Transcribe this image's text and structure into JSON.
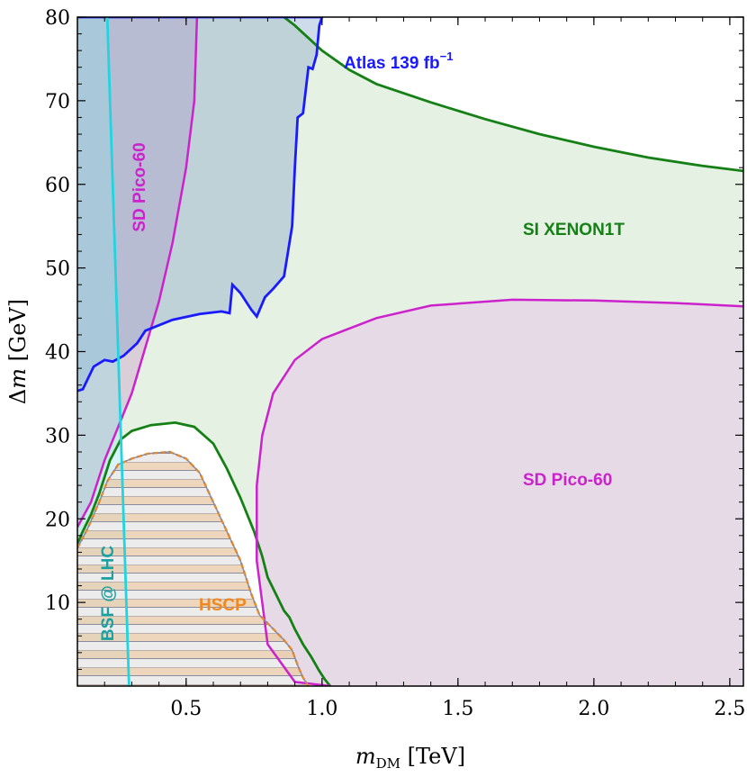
{
  "chart_data": {
    "type": "area",
    "xlabel": "m_DM [TeV]",
    "ylabel": "Δm [GeV]",
    "xlim": [
      0.1,
      2.55
    ],
    "ylim": [
      0,
      80
    ],
    "x_ticks": [
      "0.5",
      "1.0",
      "1.5",
      "2.0",
      "2.5"
    ],
    "y_ticks": [
      "10",
      "20",
      "30",
      "40",
      "50",
      "60",
      "70",
      "80"
    ],
    "grid": false,
    "legend": "none",
    "labels": {
      "atlas": "Atlas 139 fb",
      "atlas_exp": "−1",
      "xenon": "SI XENON1T",
      "pico_upper": "SD Pico-60",
      "pico_lower": "SD Pico-60",
      "bsf": "BSF @ LHC",
      "hscp": "HSCP"
    },
    "colors": {
      "atlas": "#1a1aff",
      "xenon": "#158015",
      "pico": "#cc22cc",
      "bsf": "#22d4e0",
      "bsf_text": "#1aa0a0",
      "hscp": "#ee8822",
      "hscp_hatch": "#8a8aa0"
    },
    "series": [
      {
        "name": "Atlas 139 fb−1",
        "boundary": [
          [
            0.1,
            35.3
          ],
          [
            0.12,
            35.5
          ],
          [
            0.16,
            38.2
          ],
          [
            0.2,
            39
          ],
          [
            0.23,
            38.8
          ],
          [
            0.27,
            39.5
          ],
          [
            0.32,
            41
          ],
          [
            0.35,
            42.5
          ],
          [
            0.45,
            43.8
          ],
          [
            0.55,
            44.5
          ],
          [
            0.63,
            44.8
          ],
          [
            0.66,
            44.6
          ],
          [
            0.67,
            48
          ],
          [
            0.7,
            47
          ],
          [
            0.74,
            45
          ],
          [
            0.76,
            44.2
          ],
          [
            0.79,
            46.5
          ],
          [
            0.82,
            47.5
          ],
          [
            0.86,
            49
          ],
          [
            0.89,
            55
          ],
          [
            0.9,
            62
          ],
          [
            0.91,
            68
          ],
          [
            0.93,
            68.5
          ],
          [
            0.95,
            74
          ],
          [
            0.965,
            73.8
          ],
          [
            0.98,
            75.5
          ],
          [
            0.99,
            79
          ],
          [
            1.0,
            80
          ]
        ]
      },
      {
        "name": "SI XENON1T",
        "boundary": [
          [
            0.1,
            17
          ],
          [
            0.12,
            18.5
          ],
          [
            0.15,
            20.5
          ],
          [
            0.18,
            23
          ],
          [
            0.2,
            25
          ],
          [
            0.22,
            27
          ],
          [
            0.26,
            29.5
          ],
          [
            0.3,
            30.5
          ],
          [
            0.37,
            31.2
          ],
          [
            0.46,
            31.5
          ],
          [
            0.53,
            31
          ],
          [
            0.6,
            29
          ],
          [
            0.65,
            26
          ],
          [
            0.7,
            22.5
          ],
          [
            0.75,
            18.5
          ],
          [
            0.78,
            15.5
          ],
          [
            0.8,
            13
          ],
          [
            0.83,
            11
          ],
          [
            0.86,
            9
          ],
          [
            0.88,
            8.2
          ],
          [
            0.9,
            6.8
          ],
          [
            0.93,
            5
          ],
          [
            0.96,
            3.5
          ],
          [
            0.99,
            1.8
          ],
          [
            1.01,
            0.8
          ],
          [
            1.03,
            0
          ]
        ],
        "upper": [
          [
            0.86,
            80
          ],
          [
            0.9,
            79
          ],
          [
            0.95,
            77.5
          ],
          [
            1.0,
            76
          ],
          [
            1.1,
            73.7
          ],
          [
            1.2,
            72
          ],
          [
            1.4,
            69.8
          ],
          [
            1.6,
            67.8
          ],
          [
            1.8,
            66
          ],
          [
            2.0,
            64.5
          ],
          [
            2.2,
            63.2
          ],
          [
            2.4,
            62.2
          ],
          [
            2.55,
            61.6
          ]
        ]
      },
      {
        "name": "SD Pico-60",
        "upper_boundary": [
          [
            0.1,
            19
          ],
          [
            0.15,
            22
          ],
          [
            0.2,
            27
          ],
          [
            0.25,
            31
          ],
          [
            0.3,
            35
          ],
          [
            0.35,
            40.5
          ],
          [
            0.4,
            46
          ],
          [
            0.45,
            53
          ],
          [
            0.5,
            62
          ],
          [
            0.53,
            70
          ],
          [
            0.54,
            80
          ]
        ],
        "lower_boundary": [
          [
            1.03,
            0
          ],
          [
            0.9,
            0.5
          ],
          [
            0.8,
            5
          ],
          [
            0.76,
            15
          ],
          [
            0.76,
            24
          ],
          [
            0.78,
            30
          ],
          [
            0.82,
            35
          ],
          [
            0.9,
            39
          ],
          [
            1.0,
            41.5
          ],
          [
            1.2,
            44
          ],
          [
            1.4,
            45.5
          ],
          [
            1.7,
            46.2
          ],
          [
            2.0,
            46.1
          ],
          [
            2.3,
            45.8
          ],
          [
            2.55,
            45.4
          ]
        ]
      },
      {
        "name": "BSF @ LHC",
        "boundary": [
          [
            0.21,
            80
          ],
          [
            0.29,
            0
          ]
        ]
      },
      {
        "name": "HSCP",
        "boundary": [
          [
            0.1,
            16.5
          ],
          [
            0.14,
            19
          ],
          [
            0.18,
            22
          ],
          [
            0.21,
            24.5
          ],
          [
            0.25,
            26.5
          ],
          [
            0.3,
            27.2
          ],
          [
            0.36,
            27.8
          ],
          [
            0.44,
            28
          ],
          [
            0.5,
            27.2
          ],
          [
            0.55,
            25.5
          ],
          [
            0.6,
            22
          ],
          [
            0.65,
            18.5
          ],
          [
            0.7,
            15
          ],
          [
            0.74,
            11
          ],
          [
            0.77,
            8.5
          ],
          [
            0.8,
            7.5
          ],
          [
            0.83,
            6.5
          ],
          [
            0.86,
            5.5
          ],
          [
            0.89,
            4.3
          ],
          [
            0.91,
            2.5
          ],
          [
            0.93,
            1
          ],
          [
            0.95,
            0
          ]
        ]
      }
    ]
  }
}
